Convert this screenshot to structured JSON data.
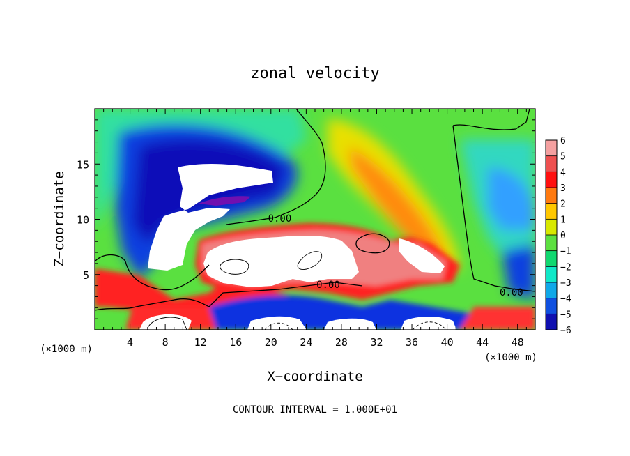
{
  "chart_data": {
    "type": "heatmap",
    "title": "zonal velocity",
    "xlabel": "X−coordinate",
    "ylabel": "Z−coordinate",
    "x_unit_label_left": "(×1000 m)",
    "x_unit_label_right": "(×1000 m)",
    "xlim": [
      0,
      50
    ],
    "ylim": [
      0,
      20
    ],
    "x_ticks": [
      4,
      8,
      12,
      16,
      20,
      24,
      28,
      32,
      36,
      40,
      44,
      48
    ],
    "y_ticks": [
      5,
      10,
      15
    ],
    "x_tick_labels": [
      "4",
      "8",
      "12",
      "16",
      "20",
      "24",
      "28",
      "32",
      "36",
      "40",
      "44",
      "48"
    ],
    "y_tick_labels": [
      "5",
      "10",
      "15"
    ],
    "colorbar": {
      "levels": [
        6,
        5,
        4,
        3,
        2,
        1,
        0,
        -1,
        -2,
        -3,
        -4,
        -5,
        -6
      ],
      "labels": [
        "6",
        "5",
        "4",
        "3",
        "2",
        "1",
        "0",
        "−1",
        "−2",
        "−3",
        "−4",
        "−5",
        "−6"
      ],
      "colors": [
        "#f4a0a0",
        "#ee5050",
        "#ff1010",
        "#ff7a10",
        "#ffc800",
        "#d8e800",
        "#5ce040",
        "#10d870",
        "#10e8c8",
        "#10a8e8",
        "#1050e0",
        "#1010b0",
        "#7010b0"
      ]
    },
    "contour_labels": [
      {
        "text": "0.00",
        "x": 21,
        "y": 10.1
      },
      {
        "text": "0.00",
        "x": 26.5,
        "y": 4.1
      },
      {
        "text": "0.00",
        "x": 47.3,
        "y": 3.4
      }
    ],
    "footer": "CONTOUR INTERVAL = 1.000E+01"
  }
}
